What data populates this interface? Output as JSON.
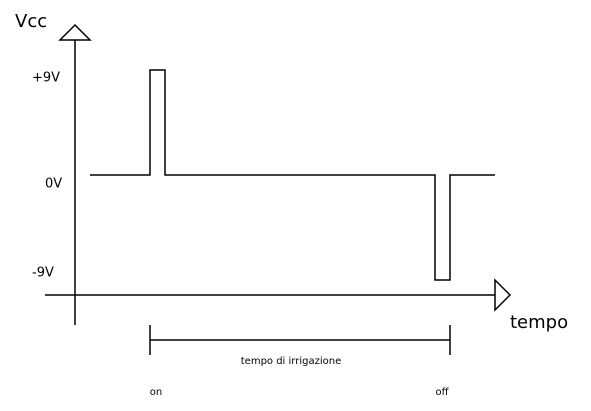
{
  "axis": {
    "y_label": "Vcc",
    "x_label": "tempo"
  },
  "levels": [
    "+9V",
    "0V",
    "-9V"
  ],
  "interval": {
    "label": "tempo di irrigazione",
    "start": "on",
    "end": "off"
  }
}
